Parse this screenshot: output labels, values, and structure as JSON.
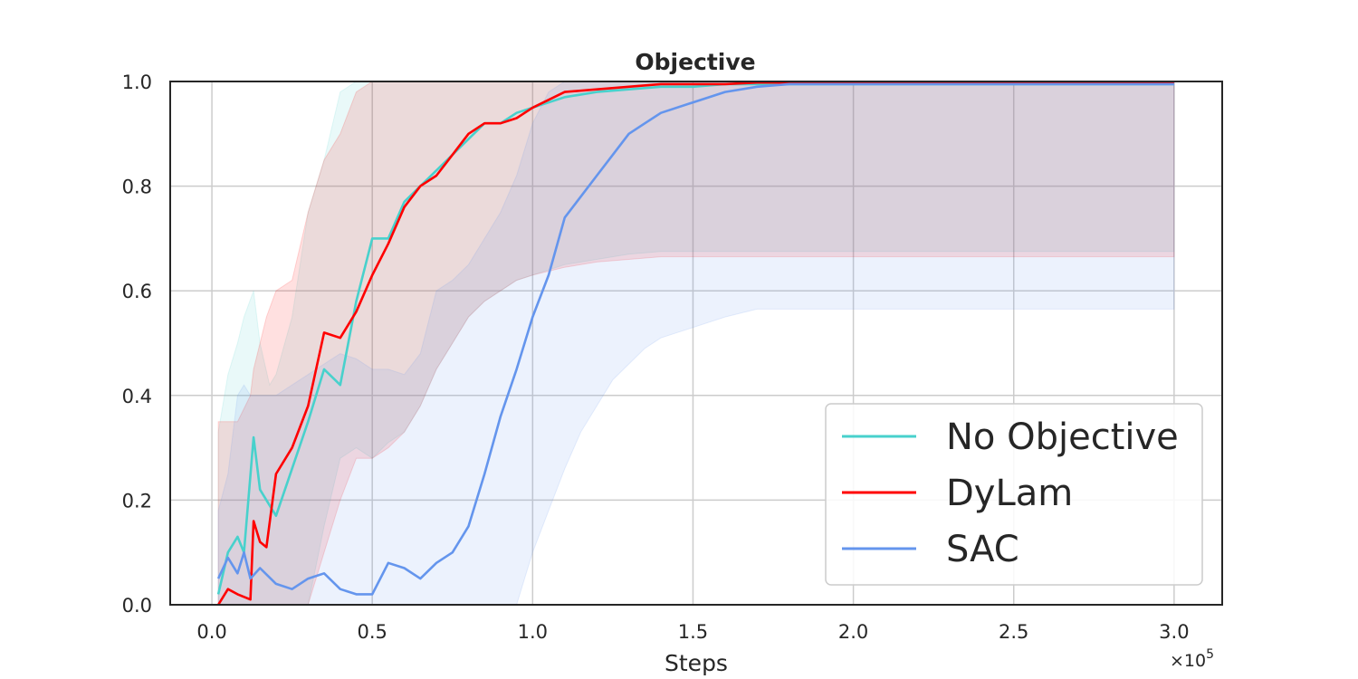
{
  "chart_data": {
    "type": "line",
    "title": "Objective",
    "xlabel": "Steps",
    "ylabel": "",
    "x_scale_label": "×10",
    "x_scale_exponent": "5",
    "xlim": [
      -0.13,
      3.15
    ],
    "ylim": [
      0,
      1.0
    ],
    "x_ticks": [
      0.0,
      0.5,
      1.0,
      1.5,
      2.0,
      2.5,
      3.0
    ],
    "x_tick_labels": [
      "0.0",
      "0.5",
      "1.0",
      "1.5",
      "2.0",
      "2.5",
      "3.0"
    ],
    "y_ticks": [
      0.0,
      0.2,
      0.4,
      0.6,
      0.8,
      1.0
    ],
    "y_tick_labels": [
      "0.0",
      "0.2",
      "0.4",
      "0.6",
      "0.8",
      "1.0"
    ],
    "grid": true,
    "legend_position": "lower-right",
    "series": [
      {
        "name": "No Objective",
        "color": "#48d1cc",
        "x": [
          0.02,
          0.05,
          0.08,
          0.1,
          0.13,
          0.15,
          0.18,
          0.2,
          0.25,
          0.3,
          0.35,
          0.4,
          0.45,
          0.5,
          0.55,
          0.6,
          0.65,
          0.7,
          0.75,
          0.8,
          0.85,
          0.9,
          0.95,
          1.0,
          1.1,
          1.2,
          1.3,
          1.4,
          1.5,
          1.6,
          1.7,
          1.8,
          2.0,
          2.2,
          2.4,
          2.6,
          2.8,
          3.0
        ],
        "y": [
          0.02,
          0.1,
          0.13,
          0.1,
          0.32,
          0.22,
          0.19,
          0.17,
          0.26,
          0.35,
          0.45,
          0.42,
          0.58,
          0.7,
          0.7,
          0.77,
          0.8,
          0.83,
          0.86,
          0.89,
          0.92,
          0.92,
          0.94,
          0.95,
          0.97,
          0.98,
          0.985,
          0.99,
          0.99,
          0.995,
          0.995,
          0.995,
          0.995,
          0.995,
          0.995,
          0.995,
          0.995,
          0.995
        ],
        "band_lower": [
          0.0,
          0.0,
          0.0,
          0.0,
          0.0,
          0.0,
          0.0,
          0.0,
          0.0,
          0.0,
          0.15,
          0.28,
          0.3,
          0.28,
          0.31,
          0.33,
          0.38,
          0.45,
          0.5,
          0.55,
          0.58,
          0.6,
          0.62,
          0.63,
          0.65,
          0.66,
          0.67,
          0.675,
          0.675,
          0.675,
          0.675,
          0.675,
          0.675,
          0.675,
          0.675,
          0.675,
          0.675,
          0.675
        ],
        "band_upper": [
          0.33,
          0.44,
          0.5,
          0.55,
          0.6,
          0.5,
          0.42,
          0.44,
          0.55,
          0.75,
          0.85,
          0.98,
          1.0,
          1.0,
          1.0,
          1.0,
          1.0,
          1.0,
          1.0,
          1.0,
          1.0,
          1.0,
          1.0,
          1.0,
          1.0,
          1.0,
          1.0,
          1.0,
          1.0,
          1.0,
          1.0,
          1.0,
          1.0,
          1.0,
          1.0,
          1.0,
          1.0,
          1.0
        ]
      },
      {
        "name": "DyLam",
        "color": "#ff0000",
        "x": [
          0.02,
          0.05,
          0.08,
          0.12,
          0.13,
          0.15,
          0.17,
          0.2,
          0.25,
          0.3,
          0.35,
          0.4,
          0.45,
          0.5,
          0.55,
          0.6,
          0.65,
          0.7,
          0.75,
          0.8,
          0.85,
          0.9,
          0.95,
          1.0,
          1.1,
          1.2,
          1.3,
          1.4,
          1.5,
          1.6,
          1.7,
          1.8,
          2.0,
          2.2,
          2.4,
          2.6,
          2.8,
          3.0
        ],
        "y": [
          0.0,
          0.03,
          0.02,
          0.01,
          0.16,
          0.12,
          0.11,
          0.25,
          0.3,
          0.38,
          0.52,
          0.51,
          0.56,
          0.63,
          0.69,
          0.76,
          0.8,
          0.82,
          0.86,
          0.9,
          0.92,
          0.92,
          0.93,
          0.95,
          0.98,
          0.985,
          0.99,
          0.995,
          0.995,
          0.995,
          0.998,
          0.998,
          0.998,
          0.998,
          0.998,
          0.998,
          0.998,
          0.998
        ],
        "band_lower": [
          0.0,
          0.0,
          0.0,
          0.0,
          0.0,
          0.0,
          0.0,
          0.0,
          0.0,
          0.0,
          0.1,
          0.2,
          0.28,
          0.28,
          0.3,
          0.33,
          0.38,
          0.45,
          0.5,
          0.55,
          0.58,
          0.6,
          0.62,
          0.63,
          0.645,
          0.655,
          0.66,
          0.665,
          0.665,
          0.665,
          0.665,
          0.665,
          0.665,
          0.665,
          0.665,
          0.665,
          0.665,
          0.665
        ],
        "band_upper": [
          0.35,
          0.35,
          0.35,
          0.4,
          0.45,
          0.5,
          0.55,
          0.6,
          0.62,
          0.75,
          0.85,
          0.9,
          0.98,
          1.0,
          1.0,
          1.0,
          1.0,
          1.0,
          1.0,
          1.0,
          1.0,
          1.0,
          1.0,
          1.0,
          1.0,
          1.0,
          1.0,
          1.0,
          1.0,
          1.0,
          1.0,
          1.0,
          1.0,
          1.0,
          1.0,
          1.0,
          1.0,
          1.0
        ]
      },
      {
        "name": "SAC",
        "color": "#6495ed",
        "x": [
          0.02,
          0.05,
          0.08,
          0.1,
          0.12,
          0.15,
          0.2,
          0.25,
          0.3,
          0.35,
          0.4,
          0.45,
          0.5,
          0.55,
          0.6,
          0.65,
          0.7,
          0.75,
          0.8,
          0.85,
          0.9,
          0.95,
          1.0,
          1.05,
          1.1,
          1.15,
          1.2,
          1.25,
          1.3,
          1.35,
          1.4,
          1.5,
          1.6,
          1.7,
          1.8,
          2.0,
          2.2,
          2.4,
          2.6,
          2.8,
          3.0
        ],
        "y": [
          0.05,
          0.09,
          0.06,
          0.1,
          0.05,
          0.07,
          0.04,
          0.03,
          0.05,
          0.06,
          0.03,
          0.02,
          0.02,
          0.08,
          0.07,
          0.05,
          0.08,
          0.1,
          0.15,
          0.25,
          0.36,
          0.45,
          0.55,
          0.63,
          0.74,
          0.78,
          0.82,
          0.86,
          0.9,
          0.92,
          0.94,
          0.96,
          0.98,
          0.99,
          0.995,
          0.995,
          0.995,
          0.995,
          0.995,
          0.995,
          0.995
        ],
        "band_lower": [
          0.0,
          0.0,
          0.0,
          0.0,
          0.0,
          0.0,
          0.0,
          0.0,
          0.0,
          0.0,
          0.0,
          0.0,
          0.0,
          0.0,
          0.0,
          0.0,
          0.0,
          0.0,
          0.0,
          0.0,
          0.0,
          0.0,
          0.1,
          0.18,
          0.26,
          0.33,
          0.38,
          0.43,
          0.46,
          0.49,
          0.51,
          0.53,
          0.55,
          0.565,
          0.565,
          0.565,
          0.565,
          0.565,
          0.565,
          0.565,
          0.565
        ],
        "band_upper": [
          0.18,
          0.25,
          0.4,
          0.42,
          0.4,
          0.4,
          0.4,
          0.42,
          0.44,
          0.46,
          0.48,
          0.47,
          0.45,
          0.45,
          0.44,
          0.48,
          0.6,
          0.62,
          0.65,
          0.7,
          0.75,
          0.82,
          0.92,
          0.98,
          1.0,
          1.0,
          1.0,
          1.0,
          1.0,
          1.0,
          1.0,
          1.0,
          1.0,
          1.0,
          1.0,
          1.0,
          1.0,
          1.0,
          1.0,
          1.0,
          1.0
        ]
      }
    ]
  }
}
